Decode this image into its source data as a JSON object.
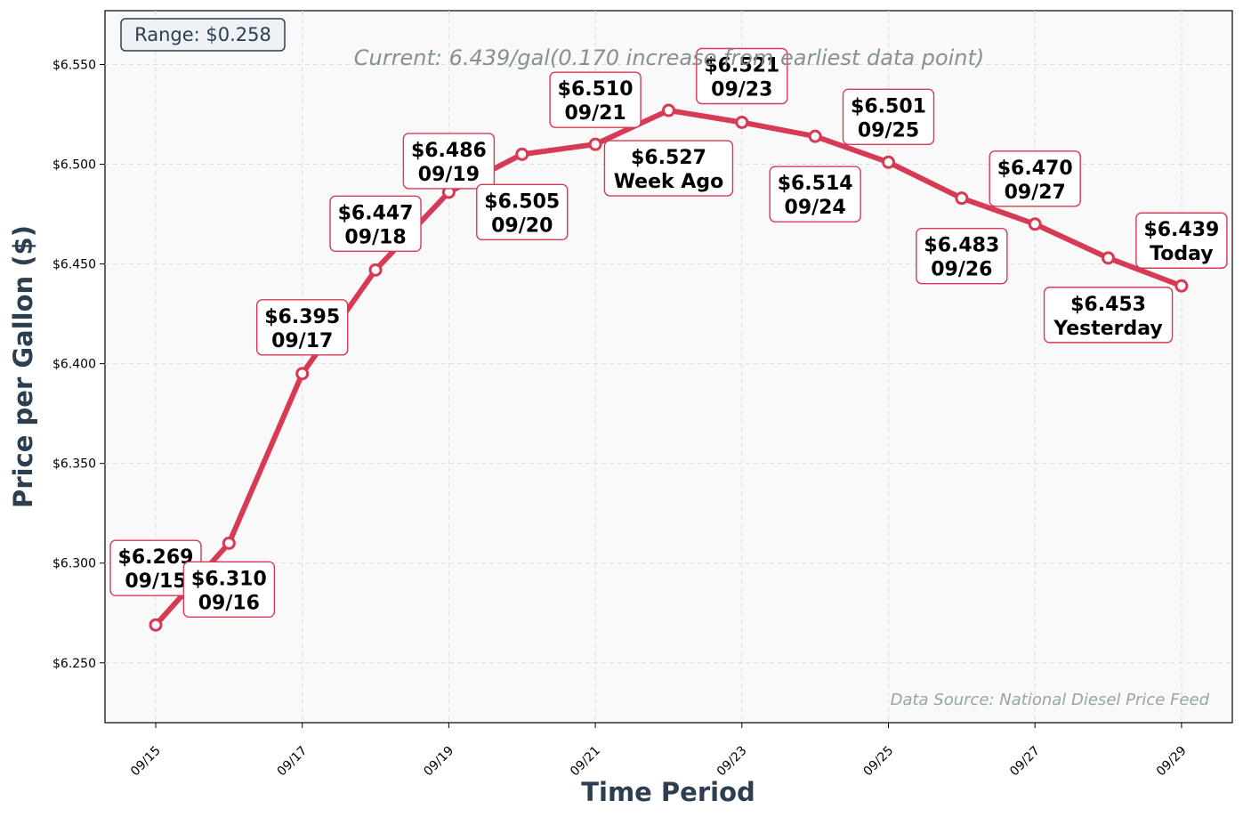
{
  "chart_data": {
    "type": "line",
    "title": "",
    "xlabel": "Time Period",
    "ylabel": "Price per Gallon ($)",
    "ylim": [
      6.22,
      6.577
    ],
    "grid": true,
    "x_tick_labels": [
      "09/15",
      "09/17",
      "09/19",
      "09/21",
      "09/23",
      "09/25",
      "09/27",
      "09/29"
    ],
    "y_tick_labels": [
      "$6.250",
      "$6.300",
      "$6.350",
      "$6.400",
      "$6.450",
      "$6.500",
      "$6.550"
    ],
    "y_ticks": [
      6.25,
      6.3,
      6.35,
      6.4,
      6.45,
      6.5,
      6.55
    ],
    "series": [
      {
        "x": [
          "09/15",
          "09/16",
          "09/17",
          "09/18",
          "09/19",
          "09/20",
          "09/21",
          "09/22",
          "09/23",
          "09/24",
          "09/25",
          "09/26",
          "09/27",
          "09/28",
          "09/29"
        ],
        "values": [
          6.269,
          6.31,
          6.395,
          6.447,
          6.486,
          6.505,
          6.51,
          6.527,
          6.521,
          6.514,
          6.501,
          6.483,
          6.47,
          6.453,
          6.439
        ],
        "color": "#d63a54"
      }
    ],
    "point_labels": [
      {
        "price": "$6.269",
        "date": "09/15"
      },
      {
        "price": "$6.310",
        "date": "09/16"
      },
      {
        "price": "$6.395",
        "date": "09/17"
      },
      {
        "price": "$6.447",
        "date": "09/18"
      },
      {
        "price": "$6.486",
        "date": "09/19"
      },
      {
        "price": "$6.505",
        "date": "09/20"
      },
      {
        "price": "$6.510",
        "date": "09/21"
      },
      {
        "price": "$6.527",
        "date": "Week Ago"
      },
      {
        "price": "$6.521",
        "date": "09/23"
      },
      {
        "price": "$6.514",
        "date": "09/24"
      },
      {
        "price": "$6.501",
        "date": "09/25"
      },
      {
        "price": "$6.483",
        "date": "09/26"
      },
      {
        "price": "$6.470",
        "date": "09/27"
      },
      {
        "price": "$6.453",
        "date": "Yesterday"
      },
      {
        "price": "$6.439",
        "date": "Today"
      }
    ],
    "range_badge": "Range: $0.258",
    "current_annotation": "Current: 6.439/gal(0.170 increase from earliest data point)",
    "source_note": "Data Source: National Diesel Price Feed",
    "colors": {
      "line": "#d63a54",
      "plot_bg": "#f9f9f9",
      "axis_label": "#2c3e50",
      "annotation": "#7f8c8d",
      "badge_bg": "#eef2f6"
    }
  }
}
